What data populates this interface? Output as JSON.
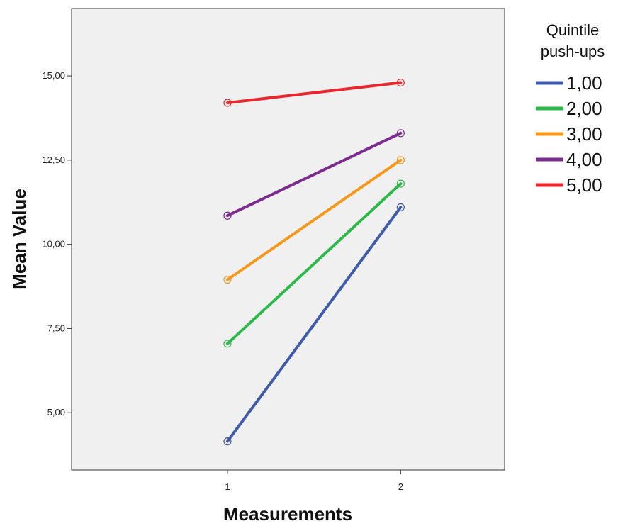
{
  "chart_data": {
    "type": "line",
    "title": "",
    "xlabel": "Measurements",
    "ylabel": "Mean Value",
    "x": [
      1,
      2
    ],
    "x_tick_labels": [
      "1",
      "2"
    ],
    "xlim": [
      0.1,
      2.6
    ],
    "ylim": [
      3.3,
      17.0
    ],
    "y_ticks": [
      5.0,
      7.5,
      10.0,
      12.5,
      15.0
    ],
    "y_tick_labels": [
      "5,00",
      "7,50",
      "10,00",
      "12,50",
      "15,00"
    ],
    "grid": false,
    "legend_title": "Quintile push-ups",
    "legend_title_lines": [
      "Quintile",
      "push-ups"
    ],
    "legend_position": "right",
    "series": [
      {
        "name": "1,00",
        "color": "#3F5BA9",
        "values": [
          4.15,
          11.1
        ]
      },
      {
        "name": "2,00",
        "color": "#2DB84A",
        "values": [
          7.05,
          11.8
        ]
      },
      {
        "name": "3,00",
        "color": "#F7981D",
        "values": [
          8.95,
          12.5
        ]
      },
      {
        "name": "4,00",
        "color": "#7B2A8E",
        "values": [
          10.85,
          13.3
        ]
      },
      {
        "name": "5,00",
        "color": "#E8262C",
        "values": [
          14.2,
          14.8
        ]
      }
    ]
  }
}
